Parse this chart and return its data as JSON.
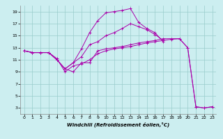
{
  "xlabel": "Windchill (Refroidissement éolien,°C)",
  "xlim": [
    -0.5,
    23.5
  ],
  "ylim": [
    2,
    20
  ],
  "xticks": [
    0,
    1,
    2,
    3,
    4,
    5,
    6,
    7,
    8,
    9,
    10,
    11,
    12,
    13,
    14,
    15,
    16,
    17,
    18,
    19,
    20,
    21,
    22,
    23
  ],
  "yticks": [
    3,
    5,
    7,
    9,
    11,
    13,
    15,
    17,
    19
  ],
  "background_color": "#cceef0",
  "line_color": "#aa00aa",
  "grid_color": "#99cccc",
  "series": [
    [
      12.5,
      12.2,
      12.2,
      12.2,
      11.2,
      9.0,
      10.0,
      10.3,
      11.0,
      12.0,
      12.5,
      12.8,
      13.0,
      13.2,
      13.5,
      13.8,
      14.0,
      14.2,
      14.4,
      14.5,
      13.0,
      3.2,
      3.0,
      3.2
    ],
    [
      12.5,
      12.2,
      12.2,
      12.2,
      11.0,
      9.5,
      9.0,
      10.5,
      10.5,
      12.5,
      12.8,
      13.0,
      13.2,
      13.5,
      13.8,
      14.0,
      14.2,
      14.5,
      14.5,
      14.5,
      13.0,
      3.2,
      3.0,
      3.2
    ],
    [
      12.5,
      12.2,
      12.2,
      12.2,
      11.0,
      9.5,
      10.5,
      12.8,
      15.5,
      17.5,
      18.8,
      19.0,
      19.2,
      19.5,
      17.2,
      16.2,
      15.5,
      14.0,
      null,
      null,
      null,
      null,
      null,
      null
    ],
    [
      12.5,
      12.2,
      12.2,
      12.2,
      11.0,
      9.5,
      10.5,
      11.5,
      13.5,
      14.0,
      15.0,
      15.5,
      16.2,
      17.0,
      16.5,
      16.0,
      15.2,
      14.2,
      null,
      null,
      null,
      null,
      null,
      null
    ]
  ]
}
